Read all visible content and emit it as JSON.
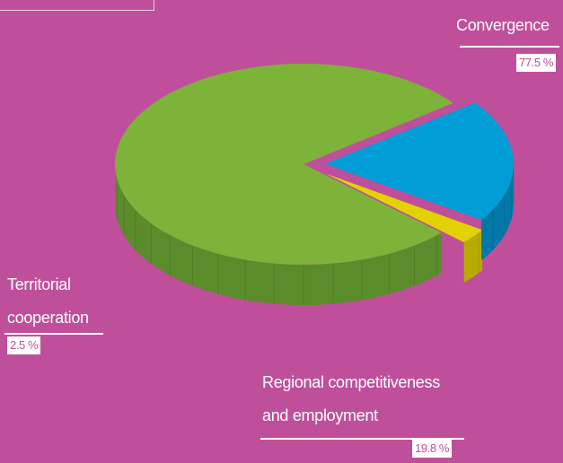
{
  "chart_data": {
    "type": "pie",
    "title": "",
    "slices": [
      {
        "label": "Convergence",
        "value": 77.5,
        "value_label": "77.5 %",
        "color": "#7db339"
      },
      {
        "label_lines": [
          "Regional competitiveness",
          "and employment"
        ],
        "value": 19.8,
        "value_label": "19.8 %",
        "color": "#009dd6"
      },
      {
        "label_lines": [
          "Territorial",
          "cooperation"
        ],
        "value": 2.5,
        "value_label": "2.5 %",
        "color": "#e2d300"
      }
    ],
    "style": "3d-exploded"
  },
  "colors": {
    "background": "#c04f9b",
    "convergence_top": "#7db339",
    "convergence_side": "#5a8c2b",
    "regional_top": "#009dd6",
    "regional_side": "#0078a8",
    "territorial_top": "#e2d300",
    "territorial_side": "#b8ab00"
  }
}
